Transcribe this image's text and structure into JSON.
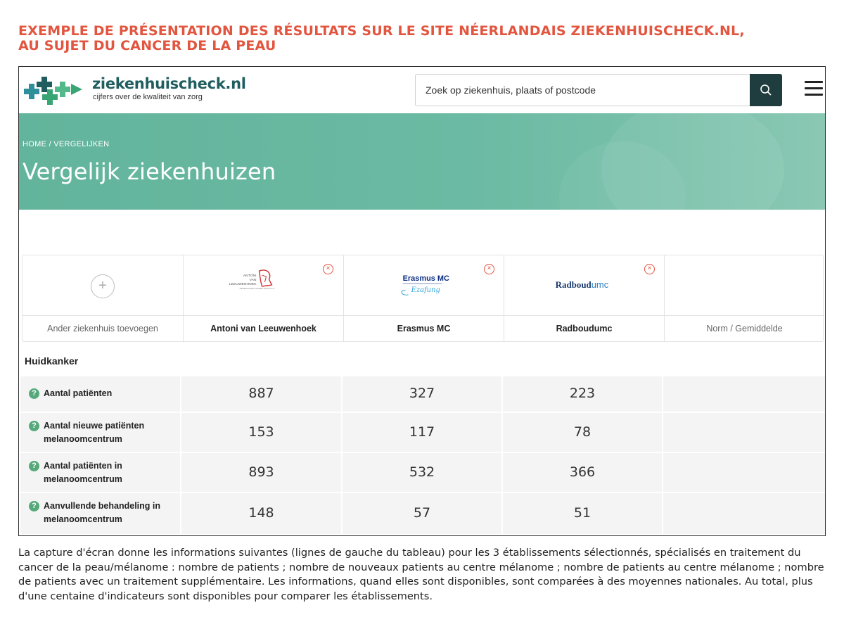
{
  "document": {
    "title_line1": "EXEMPLE DE PRÉSENTATION DES RÉSULTATS SUR LE SITE NÉERLANDAIS ZIEKENHUISCHECK.NL,",
    "title_line2": "AU SUJET DU CANCER DE LA PEAU",
    "caption": "La capture d'écran donne les informations suivantes (lignes de gauche du tableau) pour les 3 établissements sélectionnés, spécialisés en traitement du cancer de la peau/mélanome : nombre de patients ; nombre de nouveaux patients au centre mélanome ; nombre de patients au centre mélanome ; nombre de patients avec un traitement supplémentaire. Les informations, quand elles sont disponibles, sont comparées à des moyennes nationales. Au total, plus d'une centaine d'indicateurs sont disponibles pour comparer les établissements."
  },
  "header": {
    "logo_name": "ziekenhuischeck.nl",
    "logo_tagline": "cijfers over de kwaliteit van zorg",
    "search_placeholder": "Zoek op ziekenhuis, plaats of postcode",
    "colors": {
      "brand_dark": "#1f5d5f",
      "brand_green": "#3aa574",
      "banner": "#6bbaa3"
    }
  },
  "banner": {
    "breadcrumb": [
      "HOME",
      "VERGELIJKEN"
    ],
    "breadcrumb_sep": "/",
    "title": "Vergelijk ziekenhuizen"
  },
  "compare": {
    "add_label": "Ander ziekenhuis toevoegen",
    "add_icon": "+",
    "remove_icon": "×",
    "hospitals": [
      {
        "name": "Antoni van Leeuwenhoek",
        "logo_lines": [
          "ANTONI",
          "VAN",
          "LEEUWENHOEK"
        ],
        "logo_sub": "NEDERLANDS KANKER INSTITUUT"
      },
      {
        "name": "Erasmus MC",
        "logo_text": "Erasmus MC",
        "logo_script": "Ezafung"
      },
      {
        "name": "Radboudumc",
        "logo_text_a": "Radboud",
        "logo_text_b": "umc"
      }
    ],
    "norm_label": "Norm / Gemiddelde"
  },
  "section": {
    "title": "Huidkanker",
    "help_icon": "?",
    "rows": [
      {
        "label": "Aantal patiënten",
        "values": [
          "887",
          "327",
          "223"
        ],
        "norm": ""
      },
      {
        "label": "Aantal nieuwe patiënten melanoomcentrum",
        "values": [
          "153",
          "117",
          "78"
        ],
        "norm": ""
      },
      {
        "label": "Aantal patiënten in melanoomcentrum",
        "values": [
          "893",
          "532",
          "366"
        ],
        "norm": ""
      },
      {
        "label": "Aanvullende behandeling in melanoomcentrum",
        "values": [
          "148",
          "57",
          "51"
        ],
        "norm": ""
      }
    ]
  }
}
